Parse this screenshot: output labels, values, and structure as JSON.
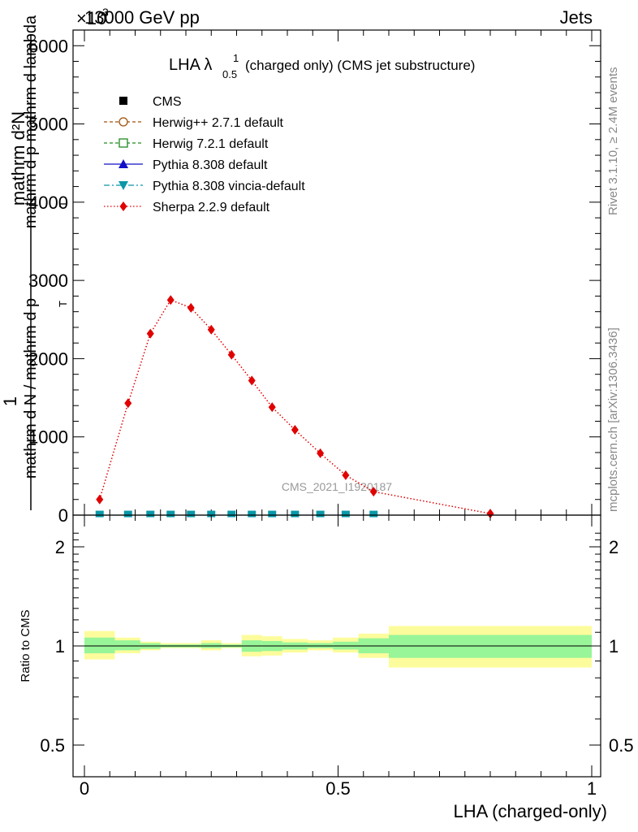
{
  "header": {
    "energy_label": "13000 GeV pp",
    "process_label": "Jets",
    "exponent_label": "×10",
    "exponent_power": "3"
  },
  "side_labels": {
    "rivet": "Rivet 3.1.10, ≥ 2.4M events",
    "mcplots": "mcplots.cern.ch [arXiv:1306.3436]"
  },
  "watermark": "CMS_2021_I1920187",
  "chart_data": [
    {
      "type": "line",
      "title": "LHA λ",
      "title_sup": "1",
      "title_sub": "0.5",
      "title_suffix": "(charged only) (CMS jet substructure)",
      "ylabel_top": "1",
      "ylabel_numerator": "mathrm d²N",
      "ylabel_numerator_sub": "T",
      "ylabel_numerator_text": "mathrm d p  mathrm d lambda",
      "ylabel_denominator": "mathrm d N / mathrm d p",
      "ylabel_denominator_sub": "T",
      "xlim": [
        0,
        1
      ],
      "ylim": [
        0,
        6200
      ],
      "y_tick_values": [
        0,
        1000,
        2000,
        3000,
        4000,
        5000,
        6000
      ],
      "y_tick_labels": [
        "0",
        "1000",
        "2000",
        "3000",
        "4000",
        "5000",
        "6000"
      ],
      "legend_position": "top-left",
      "legend": [
        {
          "name": "CMS",
          "color": "#000000",
          "marker": "filled-square",
          "line": "none"
        },
        {
          "name": "Herwig++ 2.7.1 default",
          "color": "#a0520a",
          "marker": "open-circle",
          "line": "dashed"
        },
        {
          "name": "Herwig 7.2.1 default",
          "color": "#1f8a1f",
          "marker": "open-square",
          "line": "dashed"
        },
        {
          "name": "Pythia 8.308 default",
          "color": "#1010c8",
          "marker": "filled-triangle-up",
          "line": "solid"
        },
        {
          "name": "Pythia 8.308 vincia-default",
          "color": "#0a98a8",
          "marker": "filled-triangle-down",
          "line": "dashdot"
        },
        {
          "name": "Sherpa 2.2.9 default",
          "color": "#e00000",
          "marker": "filled-diamond",
          "line": "dotted"
        }
      ],
      "series": [
        {
          "name": "Sherpa 2.2.9 default",
          "color": "#e00000",
          "x": [
            0.03,
            0.086,
            0.13,
            0.17,
            0.21,
            0.25,
            0.29,
            0.33,
            0.37,
            0.415,
            0.465,
            0.515,
            0.57,
            0.8
          ],
          "y": [
            200,
            1430,
            2320,
            2750,
            2650,
            2370,
            2050,
            1720,
            1380,
            1090,
            790,
            510,
            300,
            20
          ]
        },
        {
          "name": "Pythia 8.308 vincia-default",
          "color": "#0a98a8",
          "x": [
            0.03,
            0.086,
            0.13,
            0.17,
            0.21,
            0.25,
            0.29,
            0.33,
            0.37,
            0.415,
            0.465,
            0.515,
            0.57
          ],
          "y": [
            15,
            15,
            15,
            15,
            15,
            15,
            15,
            15,
            15,
            15,
            15,
            15,
            15
          ]
        }
      ]
    },
    {
      "type": "area",
      "ylabel": "Ratio to CMS",
      "xlabel": "LHA (charged-only)",
      "xlim": [
        0,
        1
      ],
      "ylim": [
        0.4,
        2.3
      ],
      "log_y": true,
      "x_tick_values": [
        0,
        0.5,
        1
      ],
      "x_tick_labels": [
        "0",
        "0.5",
        "1"
      ],
      "y_tick_values": [
        0.5,
        1,
        2
      ],
      "y_tick_labels": [
        "0.5",
        "1",
        "2"
      ],
      "reference_line": 1,
      "bands": [
        {
          "x0": 0.0,
          "x1": 0.06,
          "stat_low": 0.95,
          "stat_high": 1.06,
          "tot_low": 0.91,
          "tot_high": 1.11
        },
        {
          "x0": 0.06,
          "x1": 0.11,
          "stat_low": 0.97,
          "stat_high": 1.04,
          "tot_low": 0.95,
          "tot_high": 1.06
        },
        {
          "x0": 0.11,
          "x1": 0.15,
          "stat_low": 0.98,
          "stat_high": 1.02,
          "tot_low": 0.97,
          "tot_high": 1.03
        },
        {
          "x0": 0.15,
          "x1": 0.23,
          "stat_low": 0.99,
          "stat_high": 1.01,
          "tot_low": 0.985,
          "tot_high": 1.02
        },
        {
          "x0": 0.23,
          "x1": 0.27,
          "stat_low": 0.985,
          "stat_high": 1.02,
          "tot_low": 0.97,
          "tot_high": 1.04
        },
        {
          "x0": 0.27,
          "x1": 0.31,
          "stat_low": 0.99,
          "stat_high": 1.01,
          "tot_low": 0.985,
          "tot_high": 1.02
        },
        {
          "x0": 0.31,
          "x1": 0.35,
          "stat_low": 0.96,
          "stat_high": 1.04,
          "tot_low": 0.93,
          "tot_high": 1.08
        },
        {
          "x0": 0.35,
          "x1": 0.39,
          "stat_low": 0.965,
          "stat_high": 1.035,
          "tot_low": 0.935,
          "tot_high": 1.07
        },
        {
          "x0": 0.39,
          "x1": 0.44,
          "stat_low": 0.975,
          "stat_high": 1.025,
          "tot_low": 0.955,
          "tot_high": 1.05
        },
        {
          "x0": 0.44,
          "x1": 0.49,
          "stat_low": 0.985,
          "stat_high": 1.02,
          "tot_low": 0.97,
          "tot_high": 1.04
        },
        {
          "x0": 0.49,
          "x1": 0.54,
          "stat_low": 0.975,
          "stat_high": 1.03,
          "tot_low": 0.955,
          "tot_high": 1.06
        },
        {
          "x0": 0.54,
          "x1": 0.6,
          "stat_low": 0.95,
          "stat_high": 1.055,
          "tot_low": 0.92,
          "tot_high": 1.09
        },
        {
          "x0": 0.6,
          "x1": 1.0,
          "stat_low": 0.92,
          "stat_high": 1.08,
          "tot_low": 0.86,
          "tot_high": 1.15
        }
      ],
      "band_colors": {
        "stat": "#98f598",
        "total": "#fcfc9c"
      }
    }
  ]
}
